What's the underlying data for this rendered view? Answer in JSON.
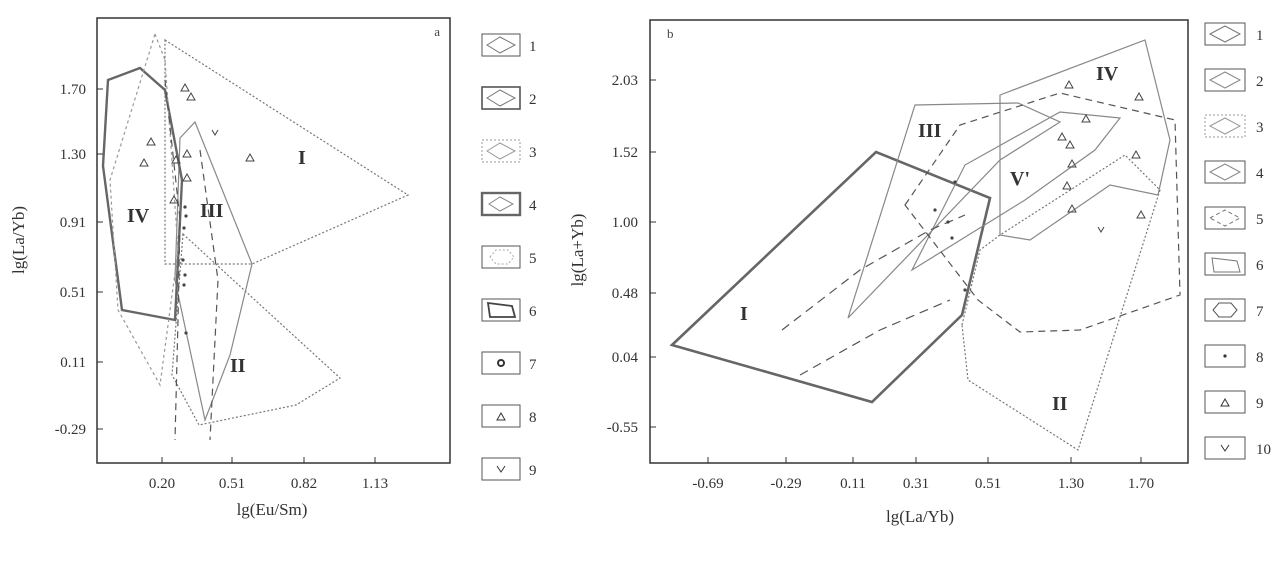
{
  "chart_data": [
    {
      "panel": "a",
      "type": "scatter",
      "xlabel": "lg(Eu/Sm)",
      "ylabel": "lg(La/Yb)",
      "xticks": [
        "0.20",
        "0.51",
        "0.82",
        "1.13"
      ],
      "yticks": [
        "1.70",
        "1.30",
        "0.91",
        "0.51",
        "0.11",
        "-0.29"
      ],
      "region_labels": [
        "I",
        "II",
        "III",
        "IV"
      ],
      "legend": [
        "1",
        "2",
        "3",
        "4",
        "5",
        "6",
        "7",
        "8",
        "9"
      ]
    },
    {
      "panel": "b",
      "type": "scatter",
      "xlabel": "lg(La/Yb)",
      "ylabel": "lg(La+Yb)",
      "xticks": [
        "-0.69",
        "-0.29",
        "0.11",
        "0.31",
        "0.51",
        "1.30",
        "1.70"
      ],
      "yticks": [
        "2.03",
        "1.52",
        "1.00",
        "0.48",
        "0.04",
        "-0.55"
      ],
      "region_labels": [
        "I",
        "II",
        "III",
        "IV",
        "V'"
      ],
      "legend": [
        "1",
        "2",
        "3",
        "4",
        "5",
        "6",
        "7",
        "8",
        "9",
        "10"
      ]
    }
  ]
}
